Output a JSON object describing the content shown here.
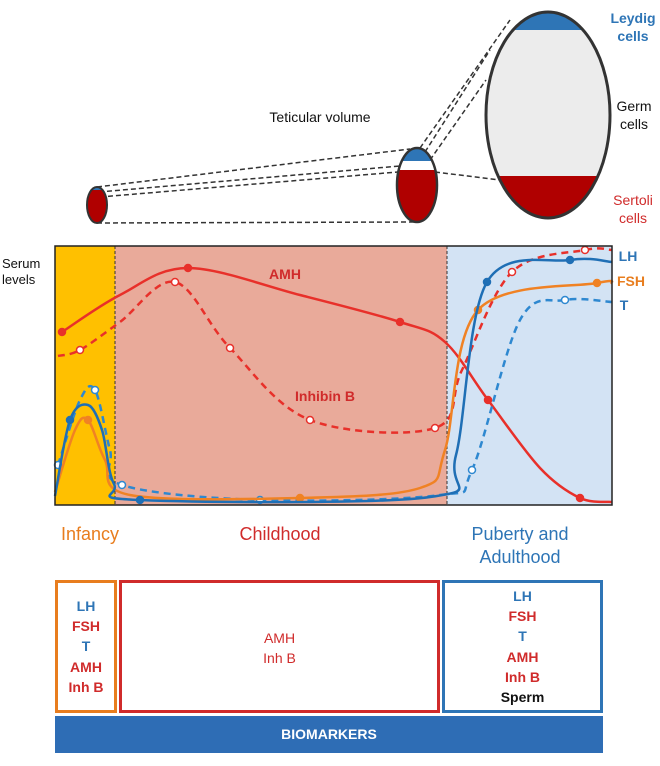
{
  "testis": {
    "title": "Teticular volume",
    "leydig": "Leydig cells",
    "germ": "Germ cells",
    "sertoli": "Sertoli cells"
  },
  "chart": {
    "y_label": "Serum levels",
    "curve_labels": {
      "amh": "AMH",
      "inhibin": "Inhibin B",
      "lh": "LH",
      "fsh": "FSH",
      "t": "T"
    }
  },
  "phases": [
    "Infancy",
    "Childhood",
    "Puberty and Adulthood"
  ],
  "boxes": [
    [
      "LH",
      "FSH",
      "T",
      "AMH",
      "Inh B"
    ],
    [
      "AMH",
      "Inh B"
    ],
    [
      "LH",
      "FSH",
      "T",
      "AMH",
      "Inh B",
      "Sperm"
    ]
  ],
  "footer": "BIOMARKERS"
}
